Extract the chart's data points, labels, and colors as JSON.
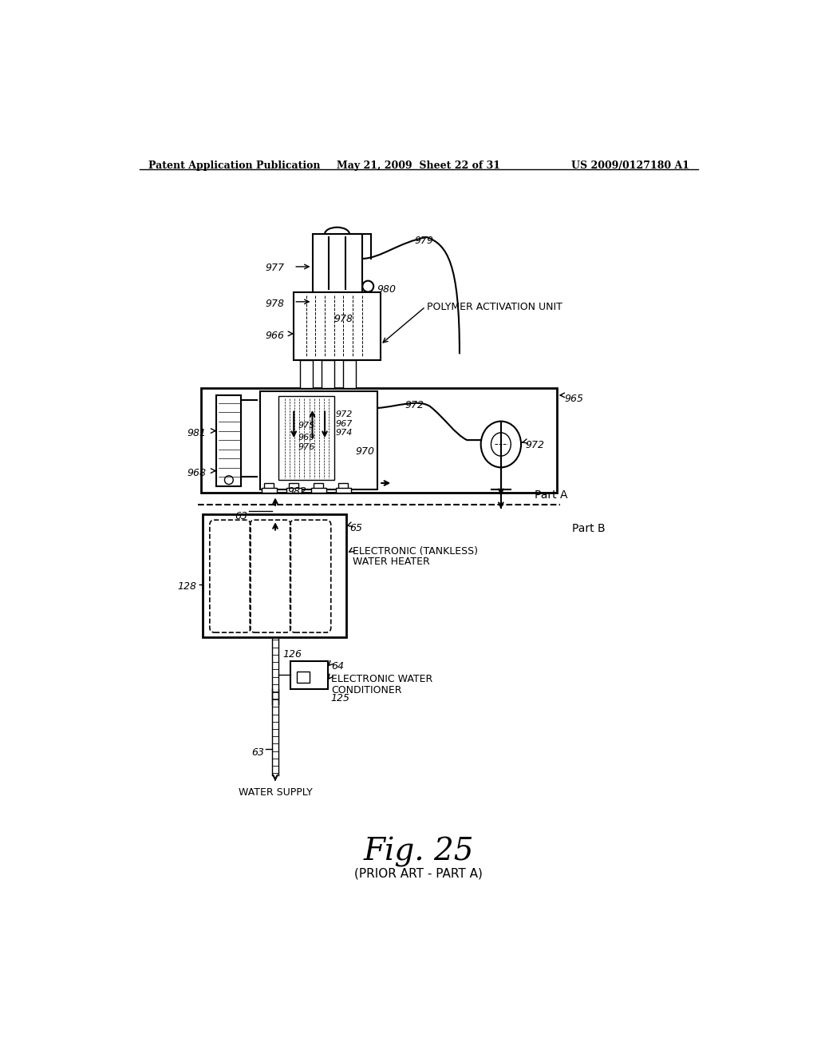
{
  "bg_color": "#ffffff",
  "header_left": "Patent Application Publication",
  "header_mid": "May 21, 2009  Sheet 22 of 31",
  "header_right": "US 2009/0127180 A1",
  "fig_label": "Fig. 25",
  "fig_sublabel": "(PRIOR ART - PART A)",
  "part_a_label": "Part A",
  "part_b_label": "Part B"
}
